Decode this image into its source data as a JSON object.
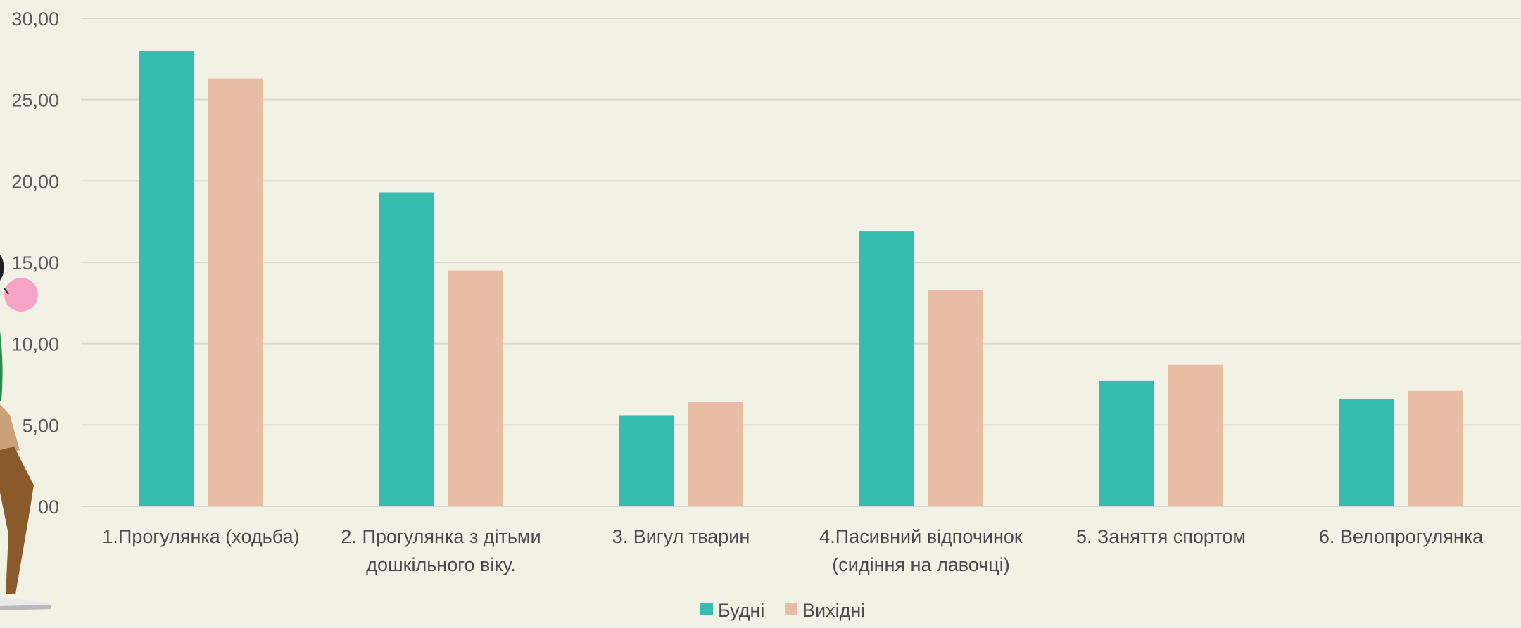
{
  "chart_data": {
    "type": "bar",
    "categories": [
      [
        "1.Прогулянка (ходьба)"
      ],
      [
        "2. Прогулянка з дітьми",
        "дошкільного віку."
      ],
      [
        "3. Вигул тварин"
      ],
      [
        "4.Пасивний відпочинок",
        "(сидіння на лавочці)"
      ],
      [
        "5. Заняття спортом"
      ],
      [
        "6. Велопрогулянка"
      ]
    ],
    "series": [
      {
        "name": "Будні",
        "color": "#35bdaf",
        "values": [
          28.0,
          19.3,
          5.6,
          16.9,
          7.7,
          6.6
        ]
      },
      {
        "name": "Вихідні",
        "color": "#e8bda3",
        "values": [
          26.3,
          14.5,
          6.4,
          13.3,
          8.7,
          7.1
        ]
      }
    ],
    "ylim": [
      0,
      30
    ],
    "yticks": [
      "00",
      "5,00",
      "10,00",
      "15,00",
      "20,00",
      "25,00",
      "30,00"
    ],
    "ytick_values": [
      0,
      5,
      10,
      15,
      20,
      25,
      30
    ],
    "grid": true,
    "legend_position": "bottom-center",
    "title": "",
    "xlabel": "",
    "ylabel": ""
  }
}
